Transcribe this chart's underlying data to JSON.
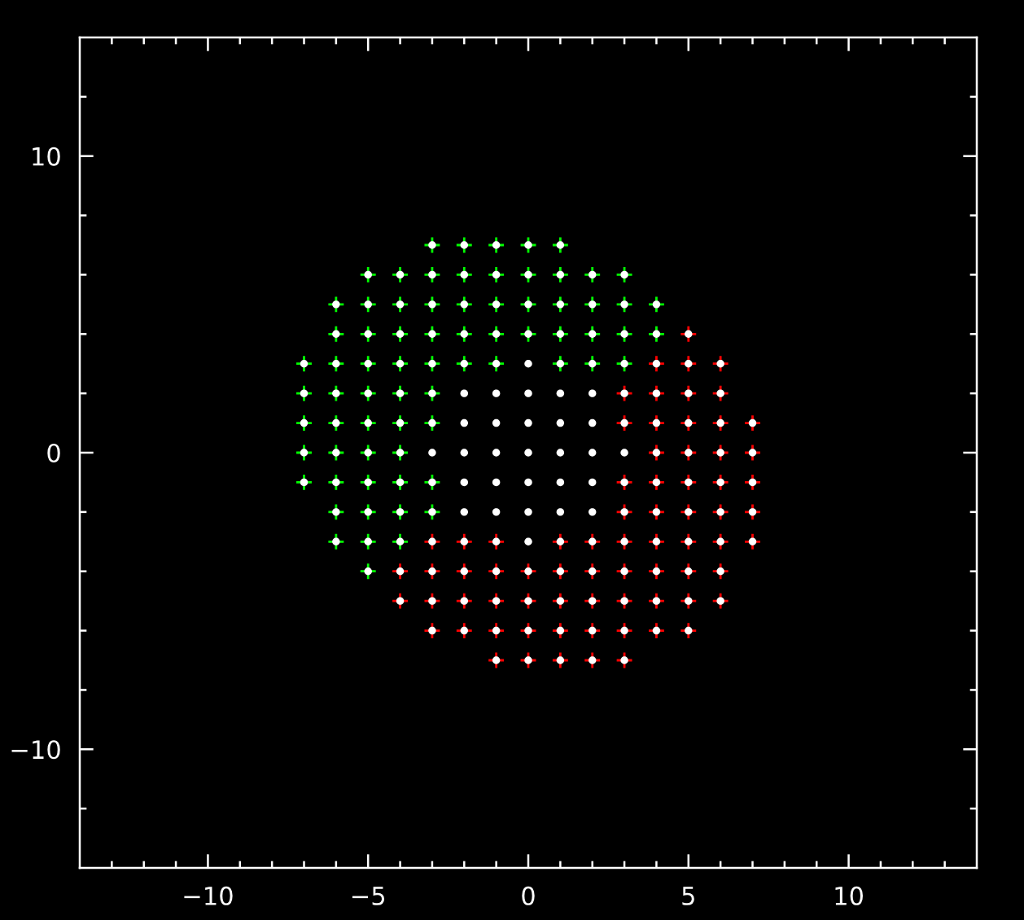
{
  "chart_data": {
    "type": "scatter",
    "xlim": [
      -14,
      14
    ],
    "ylim": [
      -14,
      14
    ],
    "xticks": [
      {
        "value": -13,
        "label": null
      },
      {
        "value": -12,
        "label": null
      },
      {
        "value": -11,
        "label": null
      },
      {
        "value": -10,
        "label": "−10"
      },
      {
        "value": -9,
        "label": null
      },
      {
        "value": -8,
        "label": null
      },
      {
        "value": -7,
        "label": null
      },
      {
        "value": -6,
        "label": null
      },
      {
        "value": -5,
        "label": "−5"
      },
      {
        "value": -4,
        "label": null
      },
      {
        "value": -3,
        "label": null
      },
      {
        "value": -2,
        "label": null
      },
      {
        "value": -1,
        "label": null
      },
      0,
      {
        "value": 1,
        "label": null
      },
      {
        "value": 2,
        "label": null
      },
      {
        "value": 3,
        "label": null
      },
      {
        "value": 4,
        "label": null
      },
      5,
      {
        "value": 6,
        "label": null
      },
      {
        "value": 7,
        "label": null
      },
      {
        "value": 8,
        "label": null
      },
      {
        "value": 9,
        "label": null
      },
      10,
      {
        "value": 11,
        "label": null
      },
      {
        "value": 12,
        "label": null
      },
      {
        "value": 13,
        "label": null
      }
    ],
    "yticks": [
      {
        "value": -12,
        "label": null
      },
      {
        "value": -10,
        "label": "−10"
      },
      {
        "value": -8,
        "label": null
      },
      {
        "value": -6,
        "label": null
      },
      {
        "value": -4,
        "label": null
      },
      {
        "value": -2,
        "label": null
      },
      0,
      {
        "value": 2,
        "label": null
      },
      {
        "value": 4,
        "label": null
      },
      {
        "value": 6,
        "label": null
      },
      {
        "value": 8,
        "label": null
      },
      10,
      {
        "value": 12,
        "label": null
      }
    ],
    "series": [
      {
        "marker": "cross",
        "color": "#00ff00",
        "x": [
          -3,
          -2,
          -1,
          0,
          1,
          -5,
          -4,
          -3,
          -2,
          -1,
          0,
          1,
          2,
          3,
          -6,
          -5,
          -4,
          -3,
          -2,
          -1,
          0,
          1,
          2,
          3,
          4,
          -6,
          -5,
          -4,
          -3,
          -2,
          -1,
          0,
          1,
          2,
          3,
          4,
          -7,
          -6,
          -5,
          -4,
          -3,
          -2,
          -1,
          1,
          2,
          3,
          -7,
          -6,
          -5,
          -4,
          -3,
          -7,
          -6,
          -5,
          -4,
          -3,
          -7,
          -6,
          -5,
          -4,
          -7,
          -6,
          -5,
          -4,
          -3,
          -6,
          -5,
          -4,
          -3,
          -6,
          -5,
          -4,
          -5
        ],
        "values": [
          7,
          7,
          7,
          7,
          7,
          6,
          6,
          6,
          6,
          6,
          6,
          6,
          6,
          6,
          5,
          5,
          5,
          5,
          5,
          5,
          5,
          5,
          5,
          5,
          5,
          4,
          4,
          4,
          4,
          4,
          4,
          4,
          4,
          4,
          4,
          4,
          3,
          3,
          3,
          3,
          3,
          3,
          3,
          3,
          3,
          3,
          2,
          2,
          2,
          2,
          2,
          1,
          1,
          1,
          1,
          1,
          0,
          0,
          0,
          0,
          -1,
          -1,
          -1,
          -1,
          -1,
          -2,
          -2,
          -2,
          -2,
          -3,
          -3,
          -3,
          -4
        ]
      },
      {
        "marker": "cross",
        "color": "#ff0000",
        "x": [
          5,
          4,
          5,
          6,
          3,
          4,
          5,
          6,
          3,
          4,
          5,
          6,
          7,
          4,
          5,
          6,
          7,
          3,
          4,
          5,
          6,
          7,
          3,
          4,
          5,
          6,
          7,
          -3,
          -2,
          -1,
          1,
          2,
          3,
          4,
          5,
          6,
          7,
          -4,
          -3,
          -2,
          -1,
          0,
          1,
          2,
          3,
          4,
          5,
          6,
          -4,
          -3,
          -2,
          -1,
          0,
          1,
          2,
          3,
          4,
          5,
          6,
          -3,
          -2,
          -1,
          0,
          1,
          2,
          3,
          4,
          5,
          -1,
          0,
          1,
          2,
          3
        ],
        "values": [
          4,
          3,
          3,
          3,
          2,
          2,
          2,
          2,
          1,
          1,
          1,
          1,
          1,
          0,
          0,
          0,
          0,
          -1,
          -1,
          -1,
          -1,
          -1,
          -2,
          -2,
          -2,
          -2,
          -2,
          -3,
          -3,
          -3,
          -3,
          -3,
          -3,
          -3,
          -3,
          -3,
          -3,
          -4,
          -4,
          -4,
          -4,
          -4,
          -4,
          -4,
          -4,
          -4,
          -4,
          -4,
          -5,
          -5,
          -5,
          -5,
          -5,
          -5,
          -5,
          -5,
          -5,
          -5,
          -5,
          -6,
          -6,
          -6,
          -6,
          -6,
          -6,
          -6,
          -6,
          -6,
          -7,
          -7,
          -7,
          -7,
          -7
        ]
      },
      {
        "marker": "circle",
        "color": "#ffffff",
        "x": [
          -3,
          -2,
          -1,
          0,
          1,
          -5,
          -4,
          -3,
          -2,
          -1,
          0,
          1,
          2,
          3,
          -6,
          -5,
          -4,
          -3,
          -2,
          -1,
          0,
          1,
          2,
          3,
          4,
          -6,
          -5,
          -4,
          -3,
          -2,
          -1,
          0,
          1,
          2,
          3,
          4,
          5,
          -7,
          -6,
          -5,
          -4,
          -3,
          -2,
          -1,
          0,
          1,
          2,
          3,
          4,
          5,
          6,
          -7,
          -6,
          -5,
          -4,
          -3,
          -2,
          -1,
          0,
          1,
          2,
          3,
          4,
          5,
          6,
          -7,
          -6,
          -5,
          -4,
          -3,
          -2,
          -1,
          0,
          1,
          2,
          3,
          4,
          5,
          6,
          7,
          -7,
          -6,
          -5,
          -4,
          -3,
          -2,
          -1,
          0,
          1,
          2,
          3,
          4,
          5,
          6,
          7,
          -7,
          -6,
          -5,
          -4,
          -3,
          -2,
          -1,
          0,
          1,
          2,
          3,
          4,
          5,
          6,
          7,
          -6,
          -5,
          -4,
          -3,
          -2,
          -1,
          0,
          1,
          2,
          3,
          4,
          5,
          6,
          7,
          -6,
          -5,
          -4,
          -3,
          -2,
          -1,
          0,
          1,
          2,
          3,
          4,
          5,
          6,
          7,
          -5,
          -4,
          -3,
          -2,
          -1,
          0,
          1,
          2,
          3,
          4,
          5,
          6,
          -4,
          -3,
          -2,
          -1,
          0,
          1,
          2,
          3,
          4,
          5,
          6,
          -3,
          -2,
          -1,
          0,
          1,
          2,
          3,
          4,
          5,
          -1,
          0,
          1,
          2,
          3
        ],
        "values": [
          7,
          7,
          7,
          7,
          7,
          6,
          6,
          6,
          6,
          6,
          6,
          6,
          6,
          6,
          5,
          5,
          5,
          5,
          5,
          5,
          5,
          5,
          5,
          5,
          5,
          4,
          4,
          4,
          4,
          4,
          4,
          4,
          4,
          4,
          4,
          4,
          4,
          3,
          3,
          3,
          3,
          3,
          3,
          3,
          3,
          3,
          3,
          3,
          3,
          3,
          3,
          2,
          2,
          2,
          2,
          2,
          2,
          2,
          2,
          2,
          2,
          2,
          2,
          2,
          2,
          1,
          1,
          1,
          1,
          1,
          1,
          1,
          1,
          1,
          1,
          1,
          1,
          1,
          1,
          1,
          0,
          0,
          0,
          0,
          0,
          0,
          0,
          0,
          0,
          0,
          0,
          0,
          0,
          0,
          0,
          -1,
          -1,
          -1,
          -1,
          -1,
          -1,
          -1,
          -1,
          -1,
          -1,
          -1,
          -1,
          -1,
          -1,
          -1,
          -2,
          -2,
          -2,
          -2,
          -2,
          -2,
          -2,
          -2,
          -2,
          -2,
          -2,
          -2,
          -2,
          -2,
          -3,
          -3,
          -3,
          -3,
          -3,
          -3,
          -3,
          -3,
          -3,
          -3,
          -3,
          -3,
          -3,
          -3,
          -4,
          -4,
          -4,
          -4,
          -4,
          -4,
          -4,
          -4,
          -4,
          -4,
          -4,
          -4,
          -5,
          -5,
          -5,
          -5,
          -5,
          -5,
          -5,
          -5,
          -5,
          -5,
          -5,
          -6,
          -6,
          -6,
          -6,
          -6,
          -6,
          -6,
          -6,
          -6,
          -7,
          -7,
          -7,
          -7,
          -7
        ]
      }
    ]
  }
}
